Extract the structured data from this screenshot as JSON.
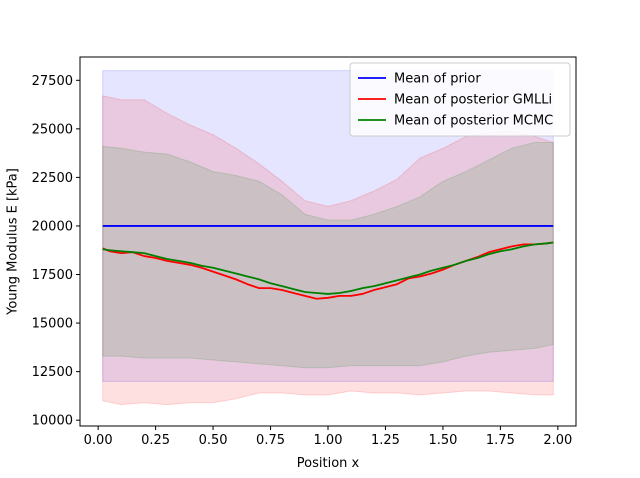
{
  "chart_data": {
    "type": "line",
    "xlabel": "Position x",
    "ylabel": "Young Modulus E [kPa]",
    "xlim": [
      -0.0789,
      2.0789
    ],
    "ylim": [
      9700,
      28700
    ],
    "grid": false,
    "legend_position": "top-right",
    "x_ticks": [
      0.0,
      0.25,
      0.5,
      0.75,
      1.0,
      1.25,
      1.5,
      1.75,
      2.0
    ],
    "x_tick_labels": [
      "0.00",
      "0.25",
      "0.50",
      "0.75",
      "1.00",
      "1.25",
      "1.50",
      "1.75",
      "2.00"
    ],
    "y_ticks": [
      10000,
      12500,
      15000,
      17500,
      20000,
      22500,
      25000,
      27500
    ],
    "y_tick_labels": [
      "10000",
      "12500",
      "15000",
      "17500",
      "20000",
      "22500",
      "25000",
      "27500"
    ],
    "bands": [
      {
        "name": "Prior band",
        "color": "#0000ff",
        "opacity": 0.1,
        "x": [
          0.02,
          1.98
        ],
        "lower": [
          12000,
          12000
        ],
        "upper": [
          28000,
          28000
        ]
      },
      {
        "name": "GMLLi band",
        "color": "#ff0000",
        "opacity": 0.12,
        "x": [
          0.02,
          0.1,
          0.2,
          0.3,
          0.4,
          0.5,
          0.6,
          0.7,
          0.8,
          0.9,
          1.0,
          1.1,
          1.2,
          1.3,
          1.4,
          1.5,
          1.6,
          1.7,
          1.8,
          1.9,
          1.98
        ],
        "lower": [
          11000,
          10800,
          10900,
          10800,
          10900,
          10900,
          11100,
          11400,
          11400,
          11300,
          11300,
          11500,
          11400,
          11400,
          11300,
          11400,
          11500,
          11500,
          11400,
          11300,
          11300
        ],
        "upper": [
          26700,
          26500,
          26500,
          25800,
          25200,
          24700,
          24000,
          23200,
          22300,
          21300,
          21000,
          21300,
          21800,
          22400,
          23500,
          24000,
          24600,
          24800,
          24900,
          24600,
          24300
        ]
      },
      {
        "name": "MCMC band",
        "color": "#008000",
        "opacity": 0.12,
        "x": [
          0.02,
          0.1,
          0.2,
          0.3,
          0.4,
          0.5,
          0.6,
          0.7,
          0.8,
          0.9,
          1.0,
          1.1,
          1.2,
          1.3,
          1.4,
          1.5,
          1.6,
          1.7,
          1.8,
          1.9,
          1.98
        ],
        "lower": [
          13300,
          13300,
          13200,
          13200,
          13200,
          13100,
          13000,
          12900,
          12800,
          12700,
          12700,
          12800,
          12800,
          12800,
          12800,
          13000,
          13300,
          13500,
          13600,
          13700,
          13900
        ],
        "upper": [
          24100,
          24000,
          23800,
          23700,
          23300,
          22800,
          22600,
          22300,
          21600,
          20600,
          20300,
          20300,
          20600,
          21000,
          21500,
          22300,
          22800,
          23400,
          24000,
          24300,
          24300
        ]
      }
    ],
    "series": [
      {
        "name": "Mean of prior",
        "color": "#0000ff",
        "x": [
          0.02,
          1.98
        ],
        "values": [
          20000,
          20000
        ]
      },
      {
        "name": "Mean of posterior GMLLi",
        "color": "#ff0000",
        "x": [
          0.02,
          0.05,
          0.1,
          0.15,
          0.2,
          0.25,
          0.3,
          0.35,
          0.4,
          0.45,
          0.5,
          0.55,
          0.6,
          0.65,
          0.7,
          0.75,
          0.8,
          0.85,
          0.9,
          0.95,
          1.0,
          1.05,
          1.1,
          1.15,
          1.2,
          1.25,
          1.3,
          1.35,
          1.4,
          1.45,
          1.5,
          1.55,
          1.6,
          1.65,
          1.7,
          1.75,
          1.8,
          1.85,
          1.9,
          1.95,
          1.98
        ],
        "values": [
          18850,
          18700,
          18600,
          18650,
          18450,
          18350,
          18200,
          18100,
          18000,
          17850,
          17650,
          17450,
          17250,
          17000,
          16800,
          16800,
          16700,
          16550,
          16400,
          16250,
          16300,
          16400,
          16400,
          16500,
          16700,
          16850,
          17000,
          17300,
          17400,
          17550,
          17750,
          18000,
          18200,
          18400,
          18650,
          18800,
          18950,
          19050,
          19050,
          19100,
          19150
        ]
      },
      {
        "name": "Mean of posterior MCMC",
        "color": "#008000",
        "x": [
          0.02,
          0.05,
          0.1,
          0.15,
          0.2,
          0.25,
          0.3,
          0.35,
          0.4,
          0.45,
          0.5,
          0.55,
          0.6,
          0.65,
          0.7,
          0.75,
          0.8,
          0.85,
          0.9,
          0.95,
          1.0,
          1.05,
          1.1,
          1.15,
          1.2,
          1.25,
          1.3,
          1.35,
          1.4,
          1.45,
          1.5,
          1.55,
          1.6,
          1.65,
          1.7,
          1.75,
          1.8,
          1.85,
          1.9,
          1.95,
          1.98
        ],
        "values": [
          18800,
          18750,
          18700,
          18650,
          18600,
          18450,
          18300,
          18200,
          18100,
          17950,
          17850,
          17700,
          17550,
          17400,
          17250,
          17050,
          16900,
          16750,
          16600,
          16550,
          16500,
          16550,
          16650,
          16800,
          16900,
          17050,
          17200,
          17350,
          17500,
          17700,
          17850,
          18000,
          18200,
          18350,
          18550,
          18700,
          18800,
          18950,
          19050,
          19100,
          19150
        ]
      }
    ]
  }
}
